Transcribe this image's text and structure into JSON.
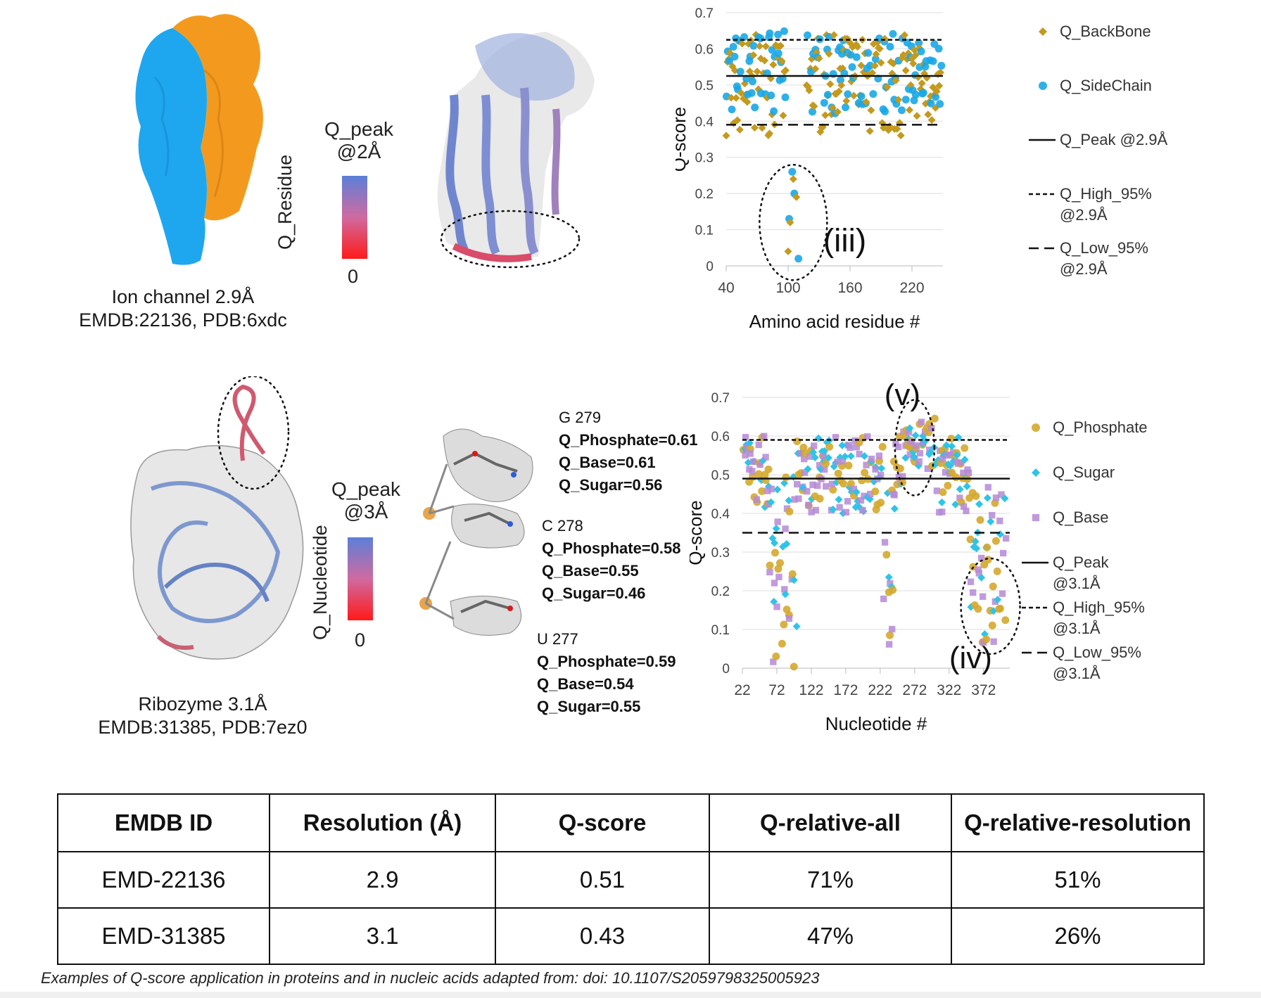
{
  "panel1": {
    "structure_label": [
      "Ion channel 2.9Å",
      "EMDB:22136, PDB:6xdc"
    ],
    "colorbar": {
      "title_line1": "Q_peak",
      "title_line2": "@2Å",
      "axis_label": "Q_Residue",
      "min_label": "0",
      "top_color": "#5b7fd8",
      "bottom_color": "#ff1a1a"
    },
    "annotation": "(iii)"
  },
  "panel2": {
    "structure_label": [
      "Ribozyme 3.1Å",
      "EMDB:31385, PDB:7ez0"
    ],
    "colorbar": {
      "title_line1": "Q_peak",
      "title_line2": "@3Å",
      "axis_label": "Q_Nucleotide",
      "min_label": "0",
      "top_color": "#5b7fd8",
      "bottom_color": "#ff1a1a"
    },
    "nucleotides": [
      {
        "name": "G 279",
        "phosphate": "Q_Phosphate=0.61",
        "base": "Q_Base=0.61",
        "sugar": "Q_Sugar=0.56"
      },
      {
        "name": "C 278",
        "phosphate": "Q_Phosphate=0.58",
        "base": "Q_Base=0.55",
        "sugar": "Q_Sugar=0.46"
      },
      {
        "name": "U 277",
        "phosphate": "Q_Phosphate=0.59",
        "base": "Q_Base=0.54",
        "sugar": "Q_Sugar=0.55"
      }
    ],
    "annotations": [
      "(v)",
      "(iv)"
    ]
  },
  "chart_data": [
    {
      "type": "scatter",
      "xlabel": "Amino acid residue #",
      "ylabel": "Q-score",
      "xlim": [
        40,
        250
      ],
      "ylim": [
        0,
        0.7
      ],
      "xticks": [
        "40",
        "100",
        "160",
        "220"
      ],
      "yticks": [
        "0",
        "0.1",
        "0.2",
        "0.3",
        "0.4",
        "0.5",
        "0.6",
        "0.7"
      ],
      "grid": true,
      "legend_position": "right",
      "series": [
        {
          "name": "Q_BackBone",
          "marker": "diamond",
          "color": "#c49a1e"
        },
        {
          "name": "Q_SideChain",
          "marker": "circle",
          "color": "#1aa7e6"
        }
      ],
      "outliers": [
        {
          "x": 100,
          "y": 0.04
        },
        {
          "x": 101,
          "y": 0.13
        },
        {
          "x": 102,
          "y": 0.12
        },
        {
          "x": 104,
          "y": 0.26
        },
        {
          "x": 105,
          "y": 0.24
        },
        {
          "x": 106,
          "y": 0.2
        },
        {
          "x": 108,
          "y": 0.19
        },
        {
          "x": 110,
          "y": 0.02
        }
      ],
      "reference_lines": [
        {
          "name": "Q_Peak @2.9Å",
          "value": 0.525,
          "style": "solid"
        },
        {
          "name": "Q_High_95% @2.9Å",
          "value": 0.625,
          "style": "dotted"
        },
        {
          "name": "Q_Low_95% @2.9Å",
          "value": 0.39,
          "style": "dashed"
        }
      ],
      "legend_entries": [
        {
          "text": [
            "Q_BackBone"
          ],
          "kind": "diamond",
          "color": "#c49a1e"
        },
        {
          "text": [
            "Q_SideChain"
          ],
          "kind": "circle",
          "color": "#1aa7e6"
        },
        {
          "text": [
            "Q_Peak @2.9Å"
          ],
          "kind": "solid"
        },
        {
          "text": [
            "Q_High_95%",
            "@2.9Å"
          ],
          "kind": "dotted"
        },
        {
          "text": [
            "Q_Low_95%",
            "@2.9Å"
          ],
          "kind": "dashed"
        }
      ],
      "annotation": "(iii)"
    },
    {
      "type": "scatter",
      "xlabel": "Nucleotide #",
      "ylabel": "Q-score",
      "xlim": [
        22,
        410
      ],
      "ylim": [
        0,
        0.7
      ],
      "xticks": [
        "22",
        "72",
        "122",
        "172",
        "222",
        "272",
        "322",
        "372"
      ],
      "yticks": [
        "0",
        "0.1",
        "0.2",
        "0.3",
        "0.4",
        "0.5",
        "0.6",
        "0.7"
      ],
      "grid": true,
      "legend_position": "right",
      "series": [
        {
          "name": "Q_Phosphate",
          "marker": "circle",
          "color": "#d4a92e"
        },
        {
          "name": "Q_Sugar",
          "marker": "diamond",
          "color": "#2ec4e8"
        },
        {
          "name": "Q_Base",
          "marker": "square",
          "color": "#b58ad6"
        }
      ],
      "reference_lines": [
        {
          "name": "Q_Peak @3.1Å",
          "value": 0.49,
          "style": "solid"
        },
        {
          "name": "Q_High_95% @3.1Å",
          "value": 0.59,
          "style": "dotted"
        },
        {
          "name": "Q_Low_95% @3.1Å",
          "value": 0.35,
          "style": "dashed"
        }
      ],
      "legend_entries": [
        {
          "text": [
            "Q_Phosphate"
          ],
          "kind": "circle",
          "color": "#d4a92e"
        },
        {
          "text": [
            "Q_Sugar"
          ],
          "kind": "diamond",
          "color": "#2ec4e8"
        },
        {
          "text": [
            "Q_Base"
          ],
          "kind": "square",
          "color": "#b58ad6"
        },
        {
          "text": [
            "Q_Peak",
            "@3.1Å"
          ],
          "kind": "solid"
        },
        {
          "text": [
            "Q_High_95%",
            "@3.1Å"
          ],
          "kind": "dotted"
        },
        {
          "text": [
            "Q_Low_95%",
            "@3.1Å"
          ],
          "kind": "dashed"
        }
      ],
      "annotations": [
        "(v)",
        "(iv)"
      ]
    },
    {
      "type": "table",
      "columns": [
        "EMDB ID",
        "Resolution (Å)",
        "Q-score",
        "Q-relative-all",
        "Q-relative-resolution"
      ],
      "rows": [
        [
          "EMD-22136",
          "2.9",
          "0.51",
          "71%",
          "51%"
        ],
        [
          "EMD-31385",
          "3.1",
          "0.43",
          "47%",
          "26%"
        ]
      ]
    }
  ],
  "caption": "Examples of Q-score application in proteins and in nucleic acids adapted from: doi: 10.1107/S2059798325005923"
}
